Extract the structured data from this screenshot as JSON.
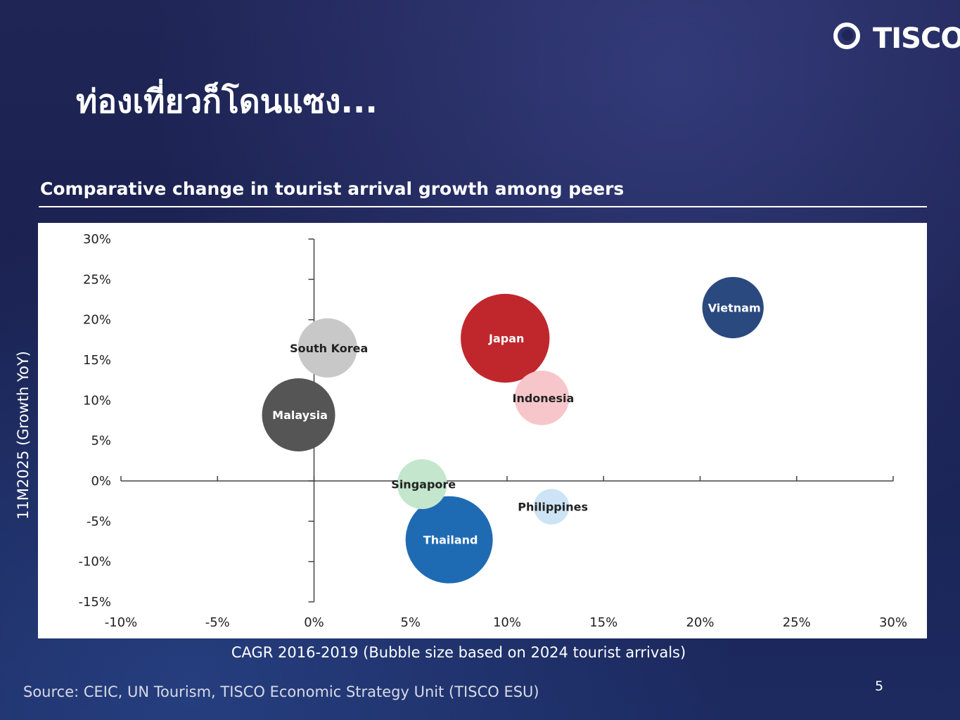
{
  "brand": {
    "logo_text": "TISCO",
    "logo_icon": "tisco-ring-icon"
  },
  "page": {
    "title": "ท่องเที่ยวก็โดนแซง...",
    "subtitle": "Comparative change in tourist arrival growth among peers",
    "source": "Source: CEIC, UN Tourism, TISCO Economic Strategy Unit (TISCO ESU)",
    "page_number": "5"
  },
  "chart_data": {
    "type": "bubble",
    "title": "",
    "xlabel": "CAGR 2016-2019 (Bubble size based on 2024 tourist arrivals)",
    "ylabel": "11M2025 (Growth YoY)",
    "xlim": [
      -10,
      30
    ],
    "ylim": [
      -15,
      30
    ],
    "x_ticks": [
      "-10%",
      "-5%",
      "0%",
      "5%",
      "10%",
      "15%",
      "20%",
      "25%",
      "30%"
    ],
    "y_ticks": [
      "30%",
      "25%",
      "20%",
      "15%",
      "10%",
      "5%",
      "0%",
      "-5%",
      "-10%",
      "-15%"
    ],
    "grid": false,
    "legend": "none",
    "points": [
      {
        "name": "Vietnam",
        "x": 21.7,
        "y": 21.5,
        "size": 17.6,
        "color": "#2a4a7f",
        "label_color": "#ffffff"
      },
      {
        "name": "Japan",
        "x": 9.9,
        "y": 17.7,
        "size": 36.9,
        "color": "#c0272d",
        "label_color": "#ffffff"
      },
      {
        "name": "South Korea",
        "x": 0.7,
        "y": 16.5,
        "size": 16.4,
        "color": "#c8c8c8",
        "label_color": "#222222"
      },
      {
        "name": "Indonesia",
        "x": 11.8,
        "y": 10.3,
        "size": 13.9,
        "color": "#f7c6cb",
        "label_color": "#222222"
      },
      {
        "name": "Malaysia",
        "x": -0.8,
        "y": 8.2,
        "size": 25.0,
        "color": "#555555",
        "label_color": "#ffffff"
      },
      {
        "name": "Singapore",
        "x": 5.6,
        "y": -0.4,
        "size": 11.6,
        "color": "#c3e6cd",
        "label_color": "#222222"
      },
      {
        "name": "Philippines",
        "x": 12.3,
        "y": -3.2,
        "size": 5.9,
        "color": "#cce4f5",
        "label_color": "#222222"
      },
      {
        "name": "Thailand",
        "x": 7.0,
        "y": -7.3,
        "size": 35.5,
        "color": "#1f6bb3",
        "label_color": "#ffffff"
      }
    ]
  }
}
